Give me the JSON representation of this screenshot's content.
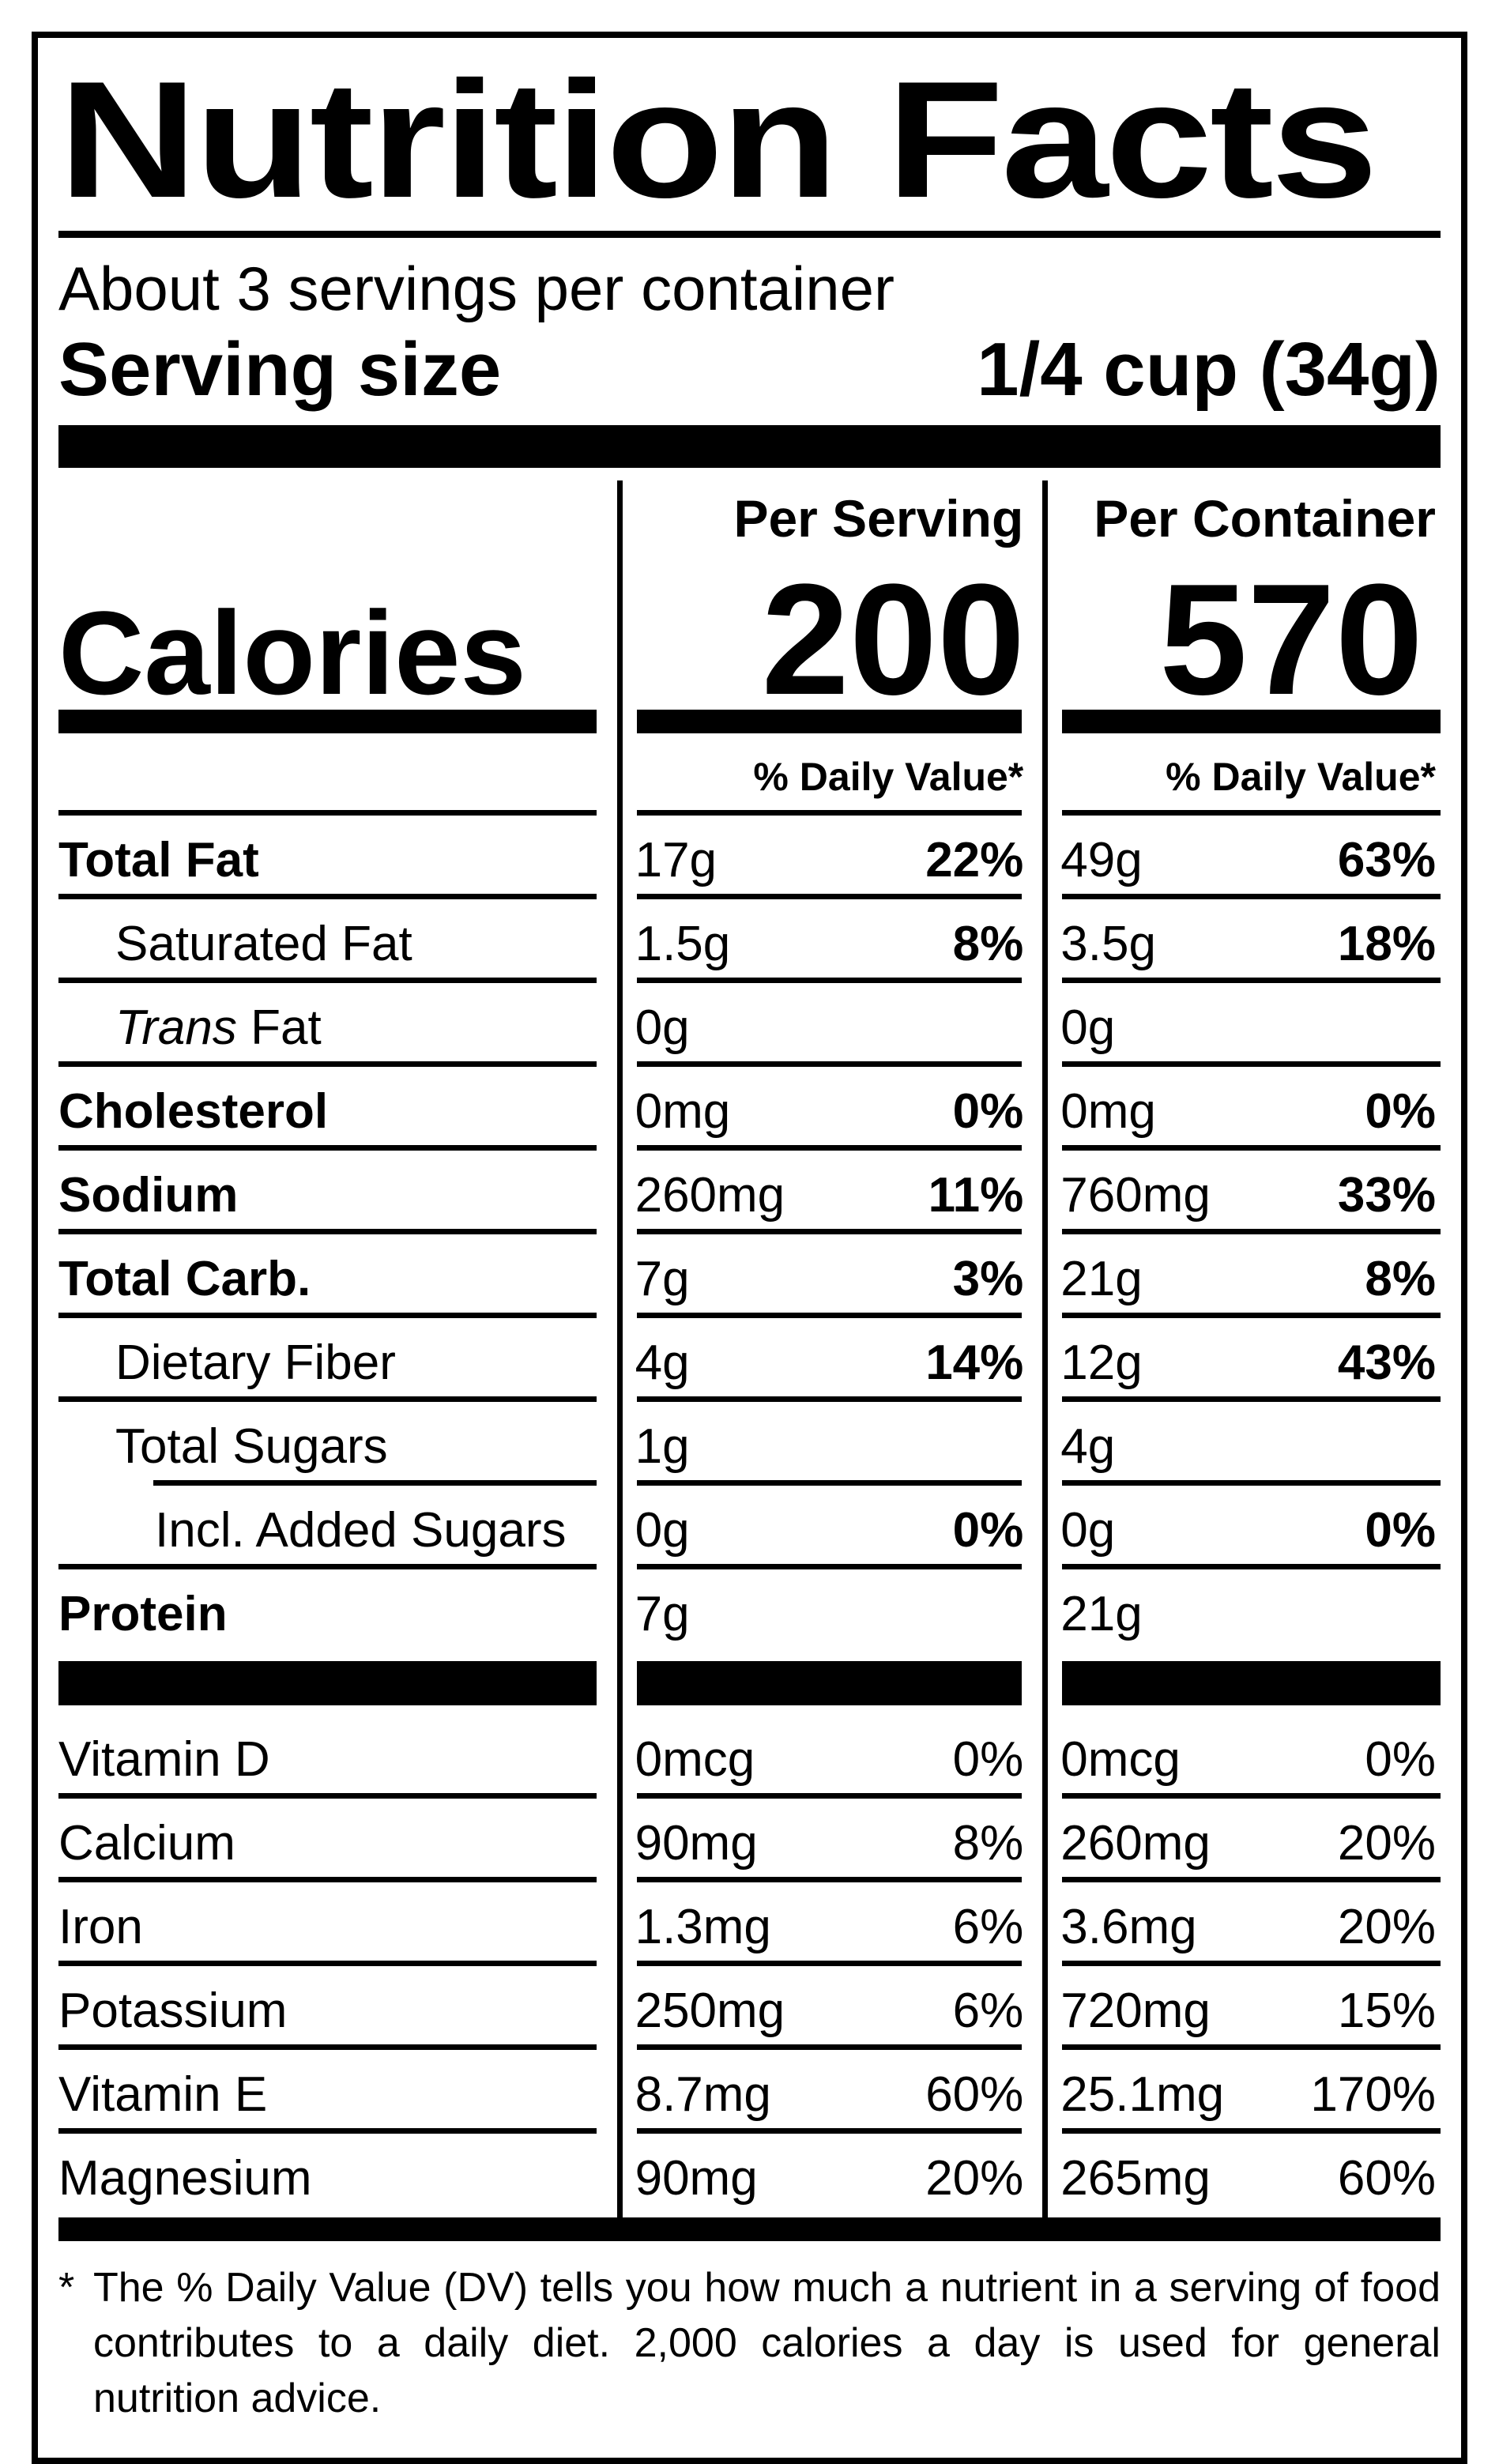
{
  "nutrition_label": {
    "title": "Nutrition Facts",
    "servings_per_container": "About 3 servings per container",
    "serving_size": {
      "label": "Serving size",
      "value": "1/4 cup (34g)"
    },
    "column_headers": {
      "per_serving": "Per Serving",
      "per_container": "Per Container"
    },
    "calories": {
      "label": "Calories",
      "per_serving": "200",
      "per_container": "570"
    },
    "daily_value_header": "% Daily Value*",
    "nutrient_rows": [
      {
        "name": "Total Fat",
        "serving_amount": "17g",
        "serving_dv": "22%",
        "container_amount": "49g",
        "container_dv": "63%"
      },
      {
        "name": "Saturated Fat",
        "serving_amount": "1.5g",
        "serving_dv": "8%",
        "container_amount": "3.5g",
        "container_dv": "18%"
      },
      {
        "name_italic": "Trans",
        "name_rest": " Fat",
        "serving_amount": "0g",
        "container_amount": "0g"
      },
      {
        "name": "Cholesterol",
        "serving_amount": "0mg",
        "serving_dv": "0%",
        "container_amount": "0mg",
        "container_dv": "0%"
      },
      {
        "name": "Sodium",
        "serving_amount": "260mg",
        "serving_dv": "11%",
        "container_amount": "760mg",
        "container_dv": "33%"
      },
      {
        "name": "Total Carb.",
        "serving_amount": "7g",
        "serving_dv": "3%",
        "container_amount": "21g",
        "container_dv": "8%"
      },
      {
        "name": "Dietary Fiber",
        "serving_amount": "4g",
        "serving_dv": "14%",
        "container_amount": "12g",
        "container_dv": "43%"
      },
      {
        "name": "Total Sugars",
        "serving_amount": "1g",
        "container_amount": "4g"
      },
      {
        "name": "Incl. Added Sugars",
        "serving_amount": "0g",
        "serving_dv": "0%",
        "container_amount": "0g",
        "container_dv": "0%"
      },
      {
        "name": "Protein",
        "serving_amount": "7g",
        "container_amount": "21g"
      },
      {
        "name": "Vitamin D",
        "serving_amount": "0mcg",
        "serving_dv": "0%",
        "container_amount": "0mcg",
        "container_dv": "0%"
      },
      {
        "name": "Calcium",
        "serving_amount": "90mg",
        "serving_dv": "8%",
        "container_amount": "260mg",
        "container_dv": "20%"
      },
      {
        "name": "Iron",
        "serving_amount": "1.3mg",
        "serving_dv": "6%",
        "container_amount": "3.6mg",
        "container_dv": "20%"
      },
      {
        "name": "Potassium",
        "serving_amount": "250mg",
        "serving_dv": "6%",
        "container_amount": "720mg",
        "container_dv": "15%"
      },
      {
        "name": "Vitamin E",
        "serving_amount": "8.7mg",
        "serving_dv": "60%",
        "container_amount": "25.1mg",
        "container_dv": "170%"
      },
      {
        "name": "Magnesium",
        "serving_amount": "90mg",
        "serving_dv": "20%",
        "container_amount": "265mg",
        "container_dv": "60%"
      }
    ],
    "footnote": {
      "marker": "*",
      "text": "The % Daily Value (DV) tells you how much a nutrient in a serving of food contributes to a daily diet. 2,000 calories a day is used for general nutrition advice."
    }
  }
}
